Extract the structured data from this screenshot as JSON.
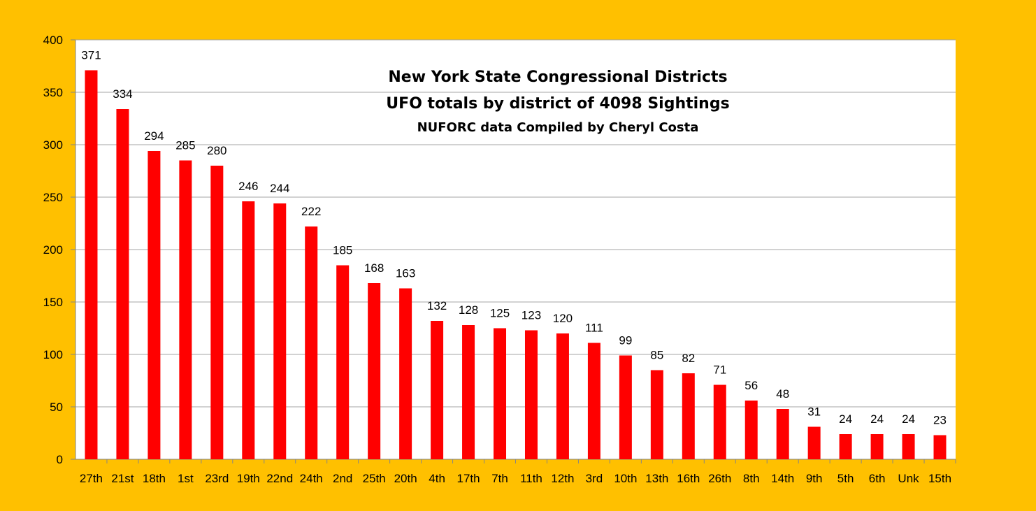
{
  "chart_data": {
    "type": "bar",
    "title": "New York State Congressional Districts",
    "subtitle": "UFO totals by district of 4098 Sightings",
    "caption": "NUFORC data  Compiled by Cheryl Costa",
    "categories": [
      "27th",
      "21st",
      "18th",
      "1st",
      "23rd",
      "19th",
      "22nd",
      "24th",
      "2nd",
      "25th",
      "20th",
      "4th",
      "17th",
      "7th",
      "11th",
      "12th",
      "3rd",
      "10th",
      "13th",
      "16th",
      "26th",
      "8th",
      "14th",
      "9th",
      "5th",
      "6th",
      "Unk",
      "15th"
    ],
    "values": [
      371,
      334,
      294,
      285,
      280,
      246,
      244,
      222,
      185,
      168,
      163,
      132,
      128,
      125,
      123,
      120,
      111,
      99,
      85,
      82,
      71,
      56,
      48,
      31,
      24,
      24,
      24,
      23
    ],
    "xlabel": "",
    "ylabel": "",
    "ylim": [
      0,
      400
    ],
    "yticks": [
      0,
      50,
      100,
      150,
      200,
      250,
      300,
      350,
      400
    ],
    "grid": true,
    "legend": "none",
    "colors": {
      "bar": "#FF0000",
      "background": "#FFC000",
      "plot": "#FFFFFF",
      "grid": "#A6A6A6"
    }
  }
}
